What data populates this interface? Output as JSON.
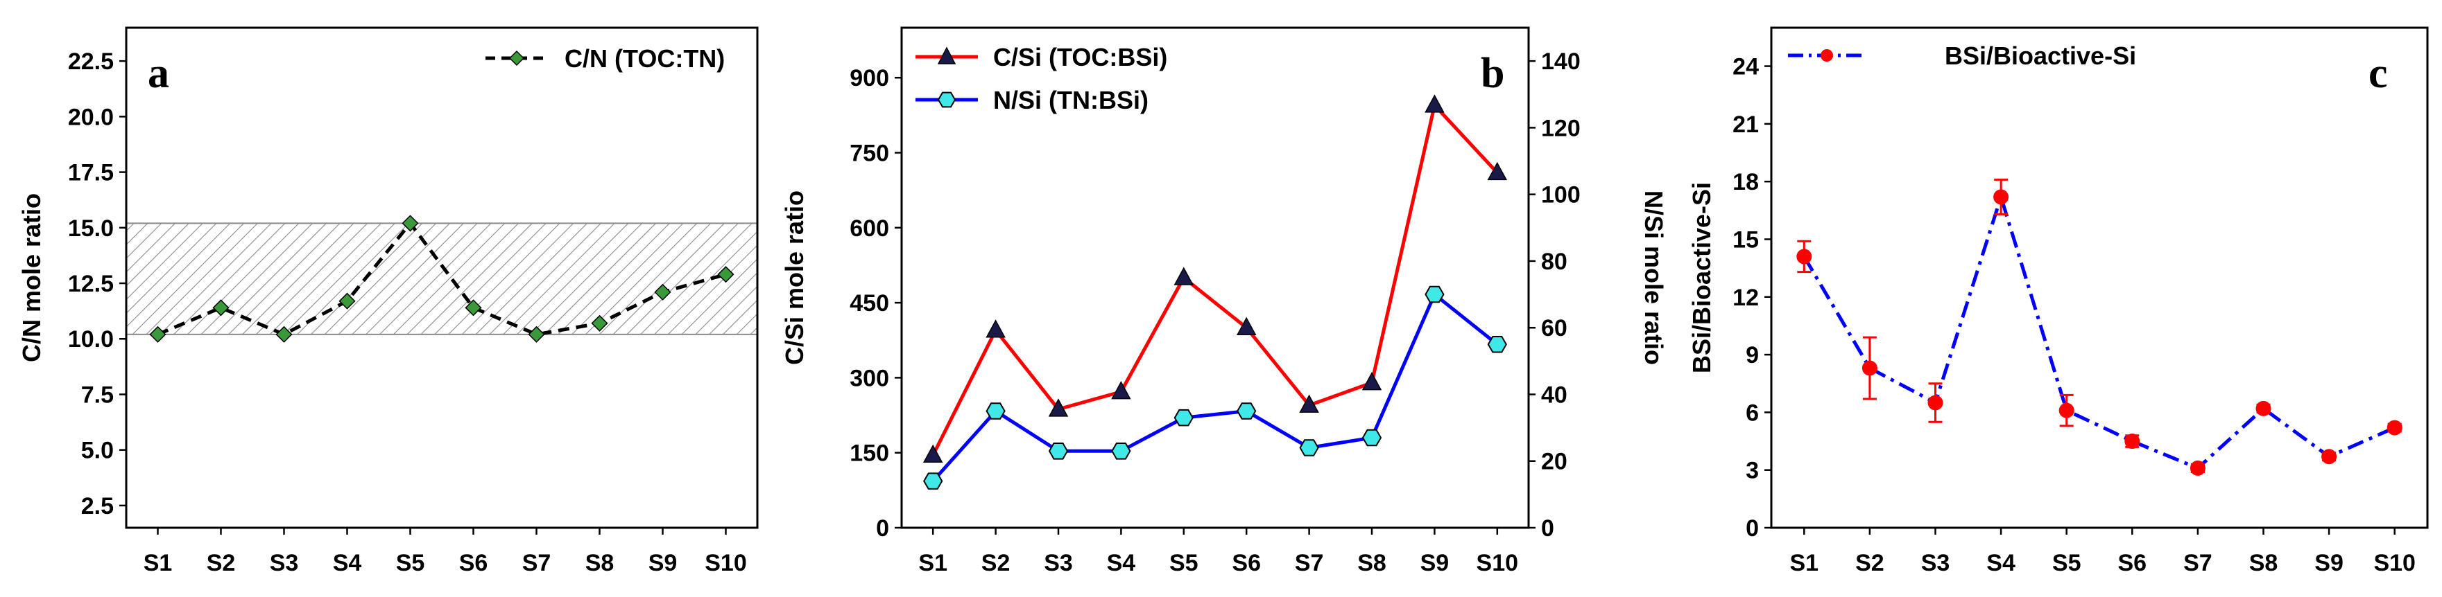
{
  "chart_data": [
    {
      "panel": "a",
      "type": "line",
      "categories": [
        "S1",
        "S2",
        "S3",
        "S4",
        "S5",
        "S6",
        "S7",
        "S8",
        "S9",
        "S10"
      ],
      "series": [
        {
          "name": "C/N (TOC:TN)",
          "values": [
            10.2,
            11.4,
            10.2,
            11.7,
            15.2,
            11.4,
            10.2,
            10.7,
            12.1,
            12.9
          ],
          "color": "#000000",
          "marker_color": "#3a9a3a",
          "style": "dashed"
        }
      ],
      "shaded_band": [
        10.2,
        15.2
      ],
      "ylabel": "C/N mole ratio",
      "xlabel": "",
      "ylim": [
        1.5,
        24.0
      ],
      "yticks": [
        "2.5",
        "5.0",
        "7.5",
        "10.0",
        "12.5",
        "15.0",
        "17.5",
        "20.0",
        "22.5"
      ],
      "legend": "top-right"
    },
    {
      "panel": "b",
      "type": "line",
      "categories": [
        "S1",
        "S2",
        "S3",
        "S4",
        "S5",
        "S6",
        "S7",
        "S8",
        "S9",
        "S10"
      ],
      "series": [
        {
          "name": "C/Si (TOC:BSi)",
          "axis": "left",
          "values": [
            145,
            395,
            237,
            272,
            500,
            400,
            245,
            290,
            845,
            710
          ],
          "color": "#ff0000",
          "marker_color": "#1a1a4a",
          "marker": "triangle"
        },
        {
          "name": "N/Si (TN:BSi)",
          "axis": "right",
          "values": [
            14,
            35,
            23,
            23,
            33,
            35,
            24,
            27,
            70,
            55
          ],
          "color": "#0000ff",
          "marker_color": "#40e8e8",
          "marker": "hexagon"
        }
      ],
      "ylabel": "C/Si mole ratio",
      "y2label": "N/Si mole ratio",
      "ylim": [
        0,
        1000
      ],
      "y2lim": [
        0,
        150
      ],
      "yticks": [
        "0",
        "150",
        "300",
        "450",
        "600",
        "750",
        "900"
      ],
      "y2ticks": [
        "0",
        "20",
        "40",
        "60",
        "80",
        "100",
        "120",
        "140"
      ],
      "legend": "top-left"
    },
    {
      "panel": "c",
      "type": "line",
      "categories": [
        "S1",
        "S2",
        "S3",
        "S4",
        "S5",
        "S6",
        "S7",
        "S8",
        "S9",
        "S10"
      ],
      "series": [
        {
          "name": "BSi/Bioactive-Si",
          "values": [
            14.1,
            8.3,
            6.5,
            17.2,
            6.1,
            4.5,
            3.1,
            6.2,
            3.7,
            5.2
          ],
          "errors": [
            0.8,
            1.6,
            1.0,
            0.9,
            0.8,
            0.3,
            0.2,
            0.2,
            0.2,
            0.2
          ],
          "color": "#0000ff",
          "marker_color": "#ff0000",
          "style": "dash-dot"
        }
      ],
      "ylabel": "BSi/Bioactive-Si",
      "ylim": [
        0,
        26
      ],
      "yticks": [
        "0",
        "3",
        "6",
        "9",
        "12",
        "15",
        "18",
        "21",
        "24"
      ],
      "legend": "top-left"
    }
  ],
  "panel_letters": {
    "a": "a",
    "b": "b",
    "c": "c"
  }
}
